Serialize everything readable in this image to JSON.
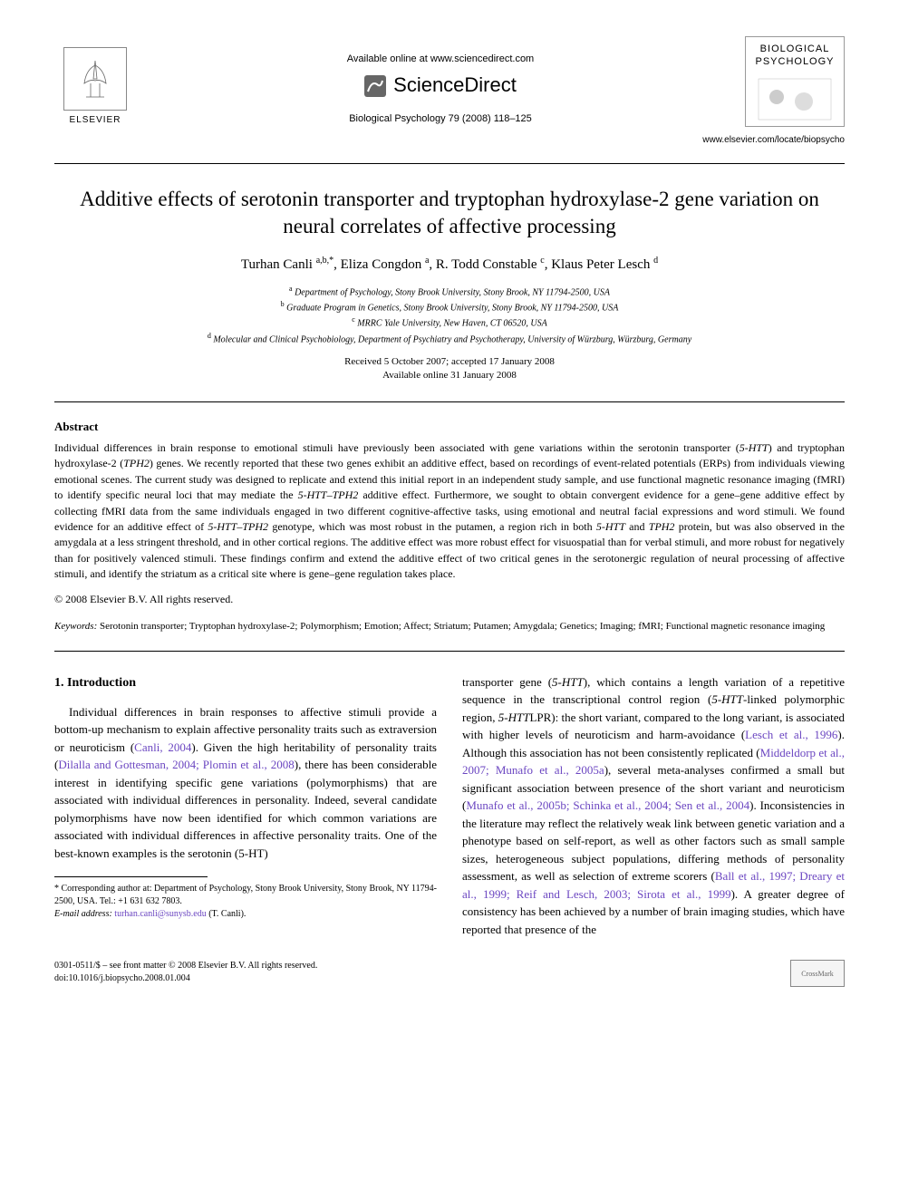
{
  "header": {
    "elsevier_label": "ELSEVIER",
    "available_online": "Available online at www.sciencedirect.com",
    "sciencedirect": "ScienceDirect",
    "journal_ref": "Biological Psychology 79 (2008) 118–125",
    "journal_cover_line1": "BIOLOGICAL",
    "journal_cover_line2": "PSYCHOLOGY",
    "journal_url": "www.elsevier.com/locate/biopsycho"
  },
  "title": "Additive effects of serotonin transporter and tryptophan hydroxylase-2 gene variation on neural correlates of affective processing",
  "authors_html": "Turhan Canli <sup>a,b,*</sup>, Eliza Congdon <sup>a</sup>, R. Todd Constable <sup>c</sup>, Klaus Peter Lesch <sup>d</sup>",
  "affiliations": [
    "<sup>a</sup> Department of Psychology, Stony Brook University, Stony Brook, NY 11794-2500, USA",
    "<sup>b</sup> Graduate Program in Genetics, Stony Brook University, Stony Brook, NY 11794-2500, USA",
    "<sup>c</sup> MRRC Yale University, New Haven, CT 06520, USA",
    "<sup>d</sup> Molecular and Clinical Psychobiology, Department of Psychiatry and Psychotherapy, University of Würzburg, Würzburg, Germany"
  ],
  "dates": {
    "received_accepted": "Received 5 October 2007; accepted 17 January 2008",
    "available": "Available online 31 January 2008"
  },
  "abstract": {
    "heading": "Abstract",
    "text": "Individual differences in brain response to emotional stimuli have previously been associated with gene variations within the serotonin transporter (5-HTT) and tryptophan hydroxylase-2 (TPH2) genes. We recently reported that these two genes exhibit an additive effect, based on recordings of event-related potentials (ERPs) from individuals viewing emotional scenes. The current study was designed to replicate and extend this initial report in an independent study sample, and use functional magnetic resonance imaging (fMRI) to identify specific neural loci that may mediate the 5-HTT–TPH2 additive effect. Furthermore, we sought to obtain convergent evidence for a gene–gene additive effect by collecting fMRI data from the same individuals engaged in two different cognitive-affective tasks, using emotional and neutral facial expressions and word stimuli. We found evidence for an additive effect of 5-HTT–TPH2 genotype, which was most robust in the putamen, a region rich in both 5-HTT and TPH2 protein, but was also observed in the amygdala at a less stringent threshold, and in other cortical regions. The additive effect was more robust effect for visuospatial than for verbal stimuli, and more robust for negatively than for positively valenced stimuli. These findings confirm and extend the additive effect of two critical genes in the serotonergic regulation of neural processing of affective stimuli, and identify the striatum as a critical site where is gene–gene regulation takes place.",
    "copyright": "© 2008 Elsevier B.V. All rights reserved."
  },
  "keywords": {
    "label": "Keywords:",
    "text": "Serotonin transporter; Tryptophan hydroxylase-2; Polymorphism; Emotion; Affect; Striatum; Putamen; Amygdala; Genetics; Imaging; fMRI; Functional magnetic resonance imaging"
  },
  "intro": {
    "heading": "1. Introduction",
    "col1": "Individual differences in brain responses to affective stimuli provide a bottom-up mechanism to explain affective personality traits such as extraversion or neuroticism (Canli, 2004). Given the high heritability of personality traits (Dilalla and Gottesman, 2004; Plomin et al., 2008), there has been considerable interest in identifying specific gene variations (polymorphisms) that are associated with individual differences in personality. Indeed, several candidate polymorphisms have now been identified for which common variations are associated with individual differences in affective personality traits. One of the best-known examples is the serotonin (5-HT)",
    "col2": "transporter gene (5-HTT), which contains a length variation of a repetitive sequence in the transcriptional control region (5-HTT-linked polymorphic region, 5-HTTLPR): the short variant, compared to the long variant, is associated with higher levels of neuroticism and harm-avoidance (Lesch et al., 1996). Although this association has not been consistently replicated (Middeldorp et al., 2007; Munafo et al., 2005a), several meta-analyses confirmed a small but significant association between presence of the short variant and neuroticism (Munafo et al., 2005b; Schinka et al., 2004; Sen et al., 2004). Inconsistencies in the literature may reflect the relatively weak link between genetic variation and a phenotype based on self-report, as well as other factors such as small sample sizes, heterogeneous subject populations, differing methods of personality assessment, as well as selection of extreme scorers (Ball et al., 1997; Dreary et al., 1999; Reif and Lesch, 2003; Sirota et al., 1999). A greater degree of consistency has been achieved by a number of brain imaging studies, which have reported that presence of the"
  },
  "footnote": {
    "corresponding": "* Corresponding author at: Department of Psychology, Stony Brook University, Stony Brook, NY 11794-2500, USA. Tel.: +1 631 632 7803.",
    "email_label": "E-mail address:",
    "email": "turhan.canli@sunysb.edu",
    "email_suffix": "(T. Canli)."
  },
  "footer": {
    "issn": "0301-0511/$ – see front matter © 2008 Elsevier B.V. All rights reserved.",
    "doi": "doi:10.1016/j.biopsycho.2008.01.004",
    "crossmark": "CrossMark"
  },
  "colors": {
    "citation": "#6b46c1",
    "text": "#000000",
    "background": "#ffffff"
  }
}
